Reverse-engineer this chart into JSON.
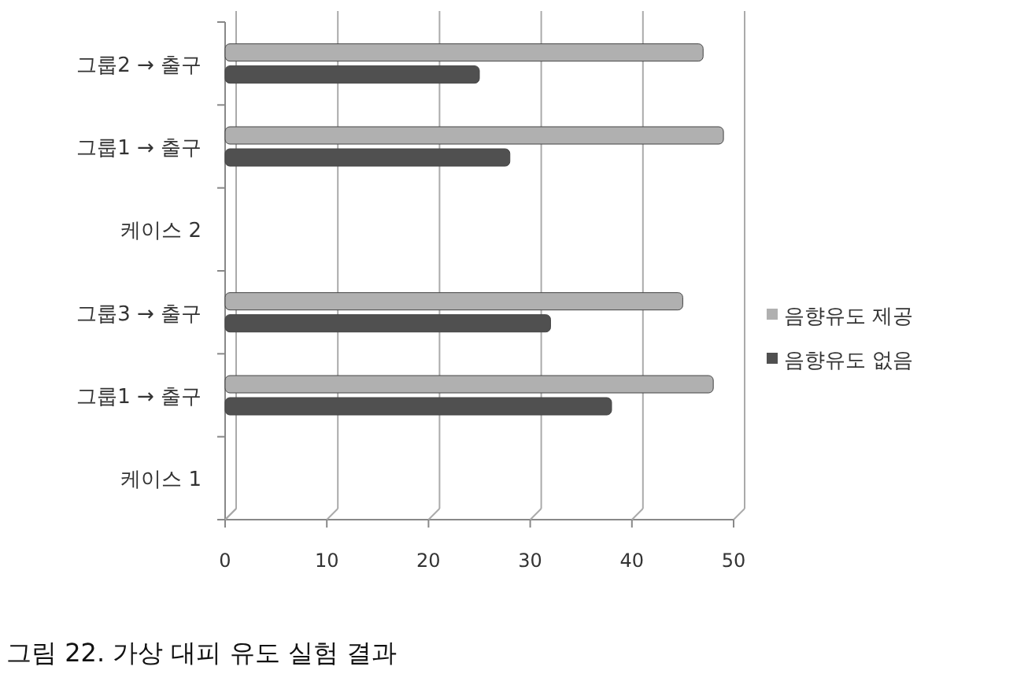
{
  "chart_data": {
    "type": "bar",
    "orientation": "horizontal",
    "categories": [
      "그룹2 → 출구",
      "그룹1 → 출구",
      "케이스 2",
      "그룹3 → 출구",
      "그룹1 → 출구",
      "케이스 1"
    ],
    "series": [
      {
        "name": "음향유도 제공",
        "color": "#b0b0b0",
        "values": [
          47,
          49,
          null,
          45,
          48,
          null
        ]
      },
      {
        "name": "음향유도 없음",
        "color": "#505050",
        "values": [
          25,
          28,
          null,
          32,
          38,
          null
        ]
      }
    ],
    "xlim": [
      0,
      50
    ],
    "xticks": [
      0,
      10,
      20,
      30,
      40,
      50
    ],
    "grid": "x",
    "legend": "right",
    "annotations": [
      "그림 22. 가상 대피 유도 실험 결과"
    ]
  }
}
